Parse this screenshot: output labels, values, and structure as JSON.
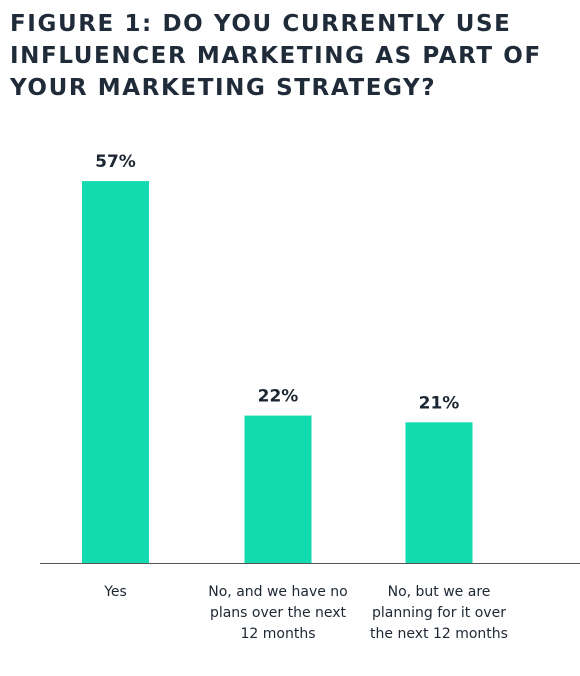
{
  "chart_data": {
    "type": "bar",
    "title": "FIGURE 1: DO YOU CURRENTLY USE INFLUENCER MARKETING AS PART OF YOUR MARKETING STRATEGY?",
    "categories": [
      "Yes",
      "No, and we have no plans over the next 12 months",
      "No, but we are planning for it over the next 12 months"
    ],
    "values": [
      57,
      22,
      21
    ],
    "value_labels": [
      "57%",
      "22%",
      "21%"
    ],
    "color": "#12dbb0"
  }
}
